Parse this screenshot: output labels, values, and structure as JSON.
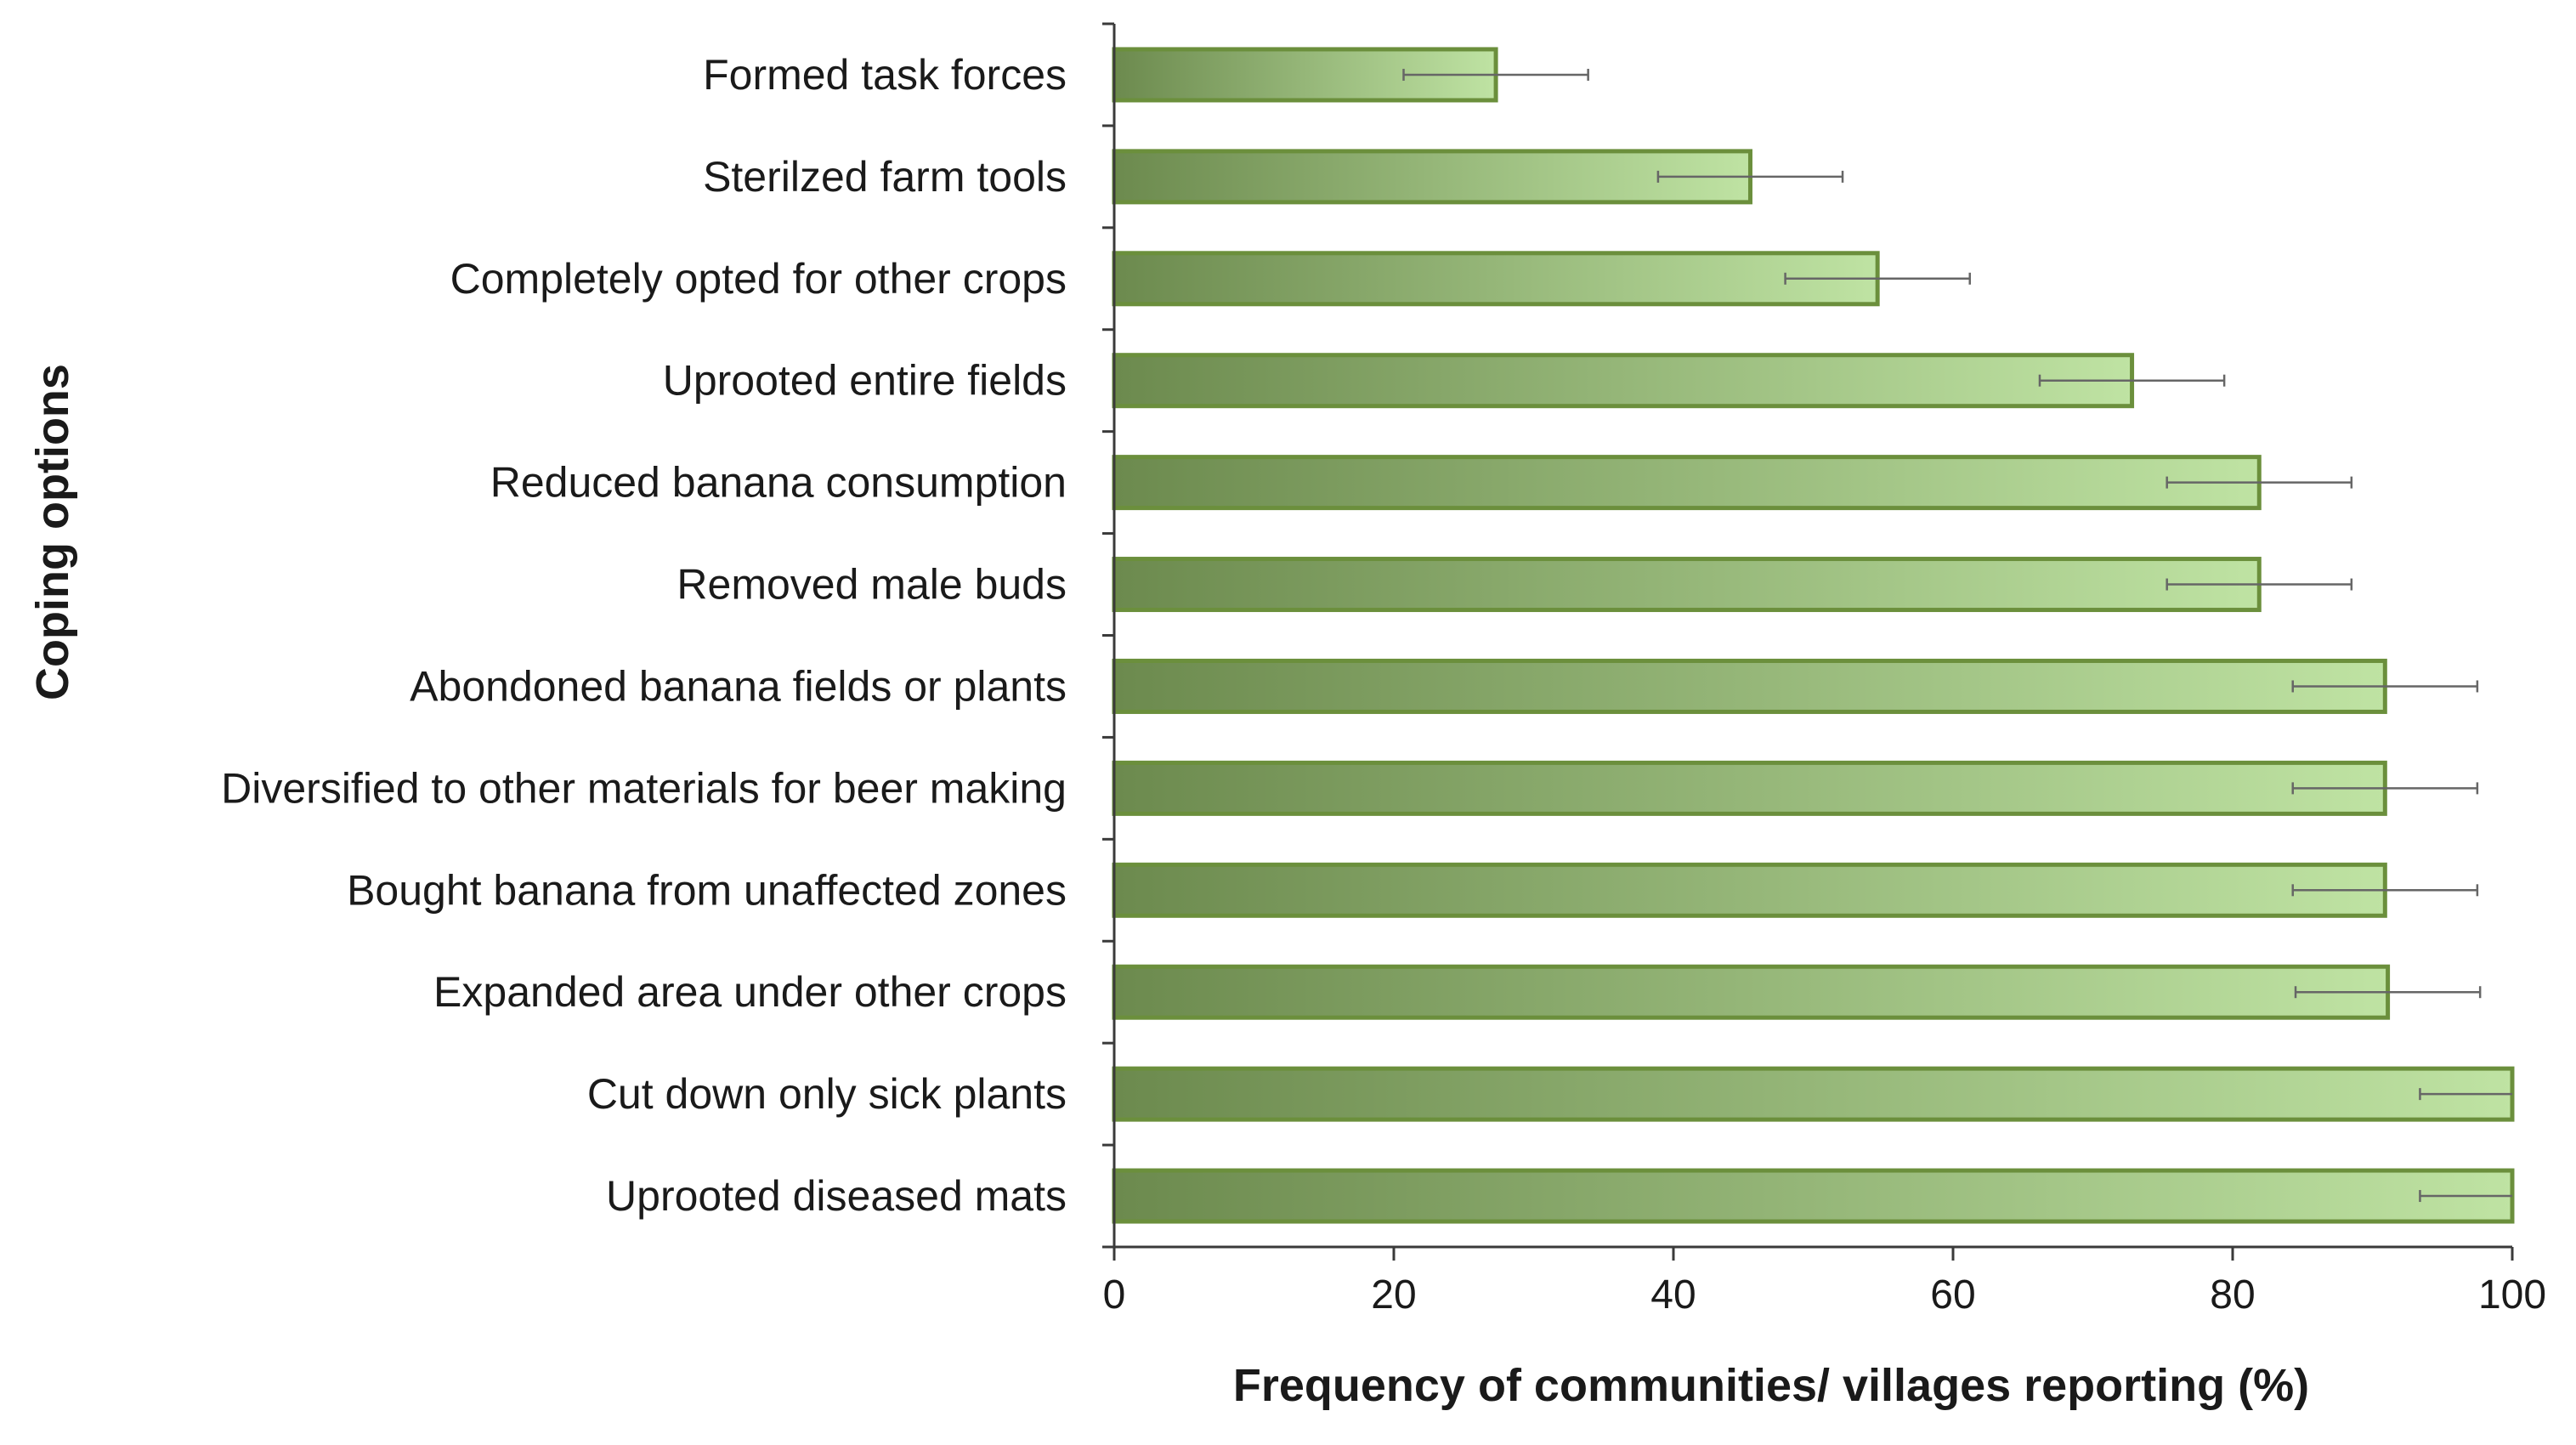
{
  "chart_data": {
    "type": "bar",
    "orientation": "horizontal",
    "title": "",
    "xlabel": "Frequency of communities/ villages reporting (%)",
    "ylabel": "Coping options",
    "xlim": [
      0,
      100
    ],
    "xticks": [
      0,
      20,
      40,
      60,
      80,
      100
    ],
    "grid": false,
    "legend": "none",
    "categories": [
      "Formed task forces",
      "Sterilzed farm tools",
      "Completely opted for other crops",
      "Uprooted entire fields",
      "Reduced banana consumption",
      "Removed male buds",
      "Abondoned banana fields or plants",
      "Diversified to other materials for beer making",
      "Bought banana from unaffected zones",
      "Expanded area under other crops",
      "Cut down only sick plants",
      "Uprooted diseased mats"
    ],
    "values": [
      27.3,
      45.5,
      54.6,
      72.8,
      81.9,
      81.9,
      90.9,
      90.9,
      90.9,
      91.1,
      100,
      100
    ],
    "error_minus": [
      6.6,
      6.6,
      6.6,
      6.6,
      6.6,
      6.6,
      6.6,
      6.6,
      6.6,
      6.6,
      6.6,
      6.6
    ],
    "error_plus": [
      6.6,
      6.6,
      6.6,
      6.6,
      6.6,
      6.6,
      6.6,
      6.6,
      6.6,
      6.6,
      0,
      0
    ],
    "colors": {
      "bar_dark": "#6c8a4e",
      "bar_light": "#bfe3a3",
      "bar_stroke": "#6b8f3c",
      "axis": "#3a3a3a",
      "error_bar": "#666666"
    }
  }
}
